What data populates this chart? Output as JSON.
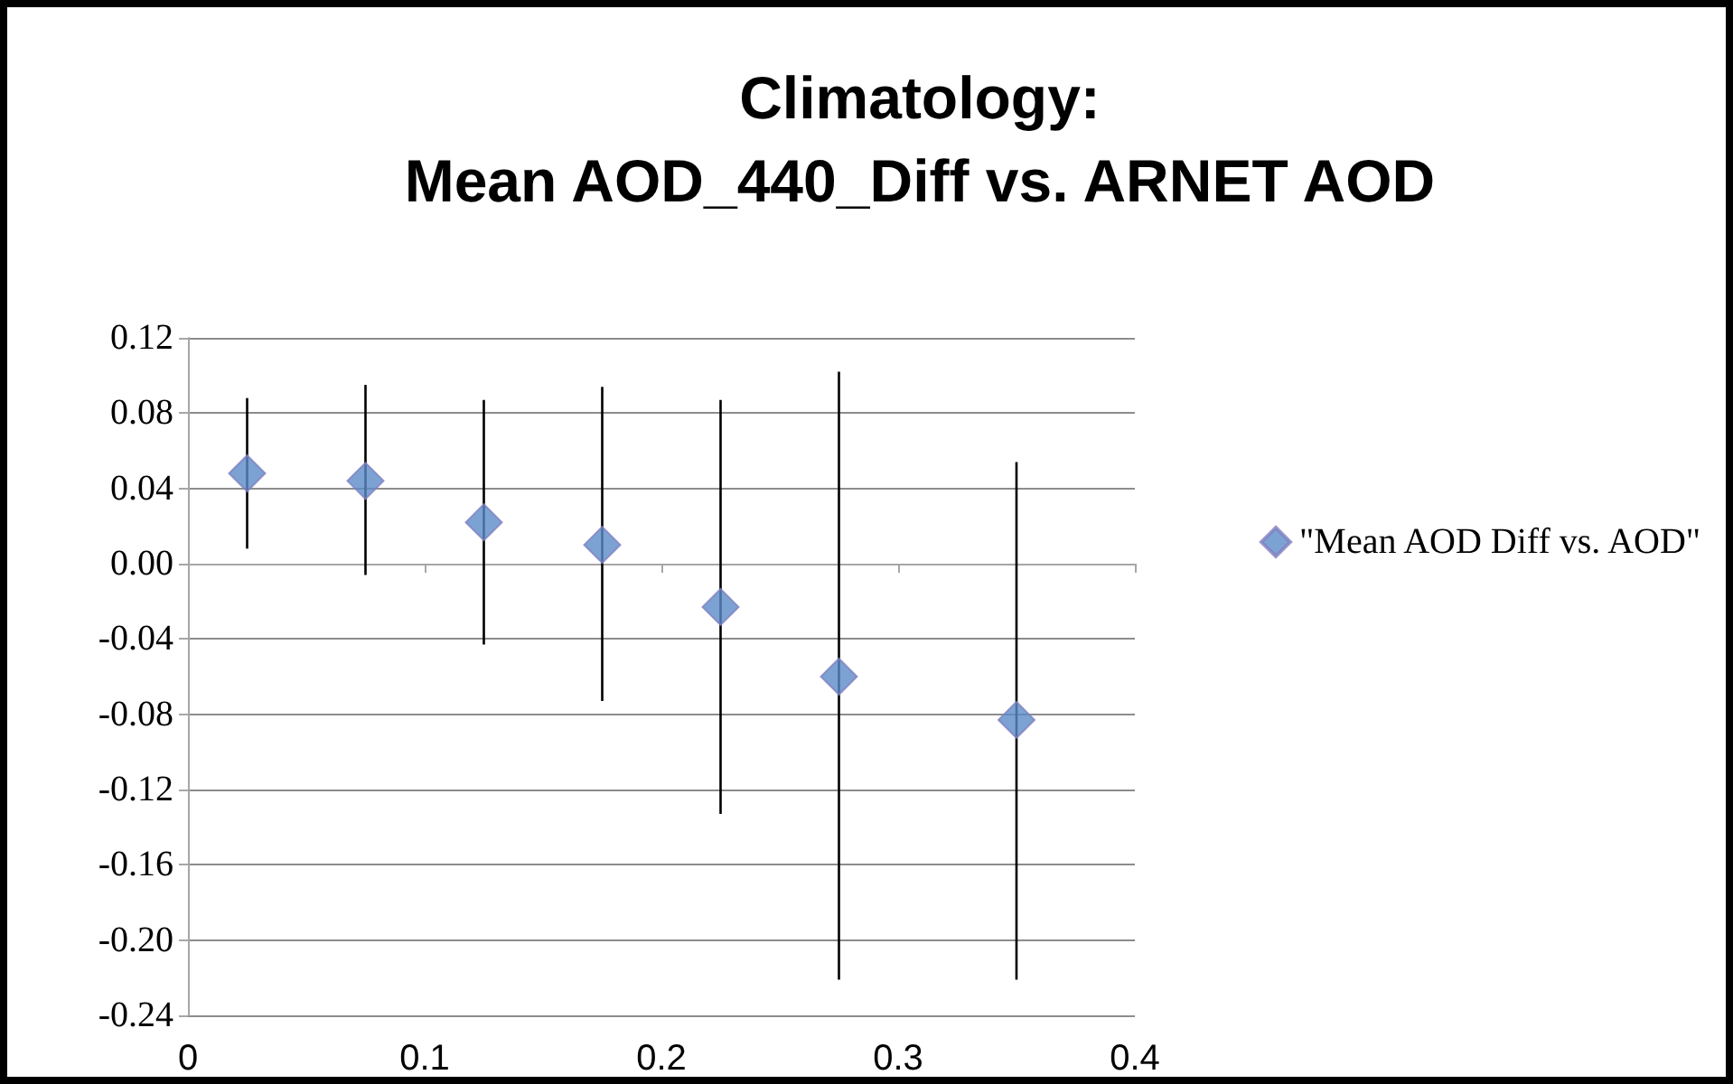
{
  "chart_data": {
    "type": "scatter",
    "title": "Climatology:\nMean AOD_440_Diff vs. ARNET AOD",
    "x": [
      0.025,
      0.075,
      0.125,
      0.175,
      0.225,
      0.275,
      0.35
    ],
    "series": [
      {
        "name": "\"Mean AOD Diff vs. AOD\"",
        "color": "#5b8bc9",
        "values": [
          0.048,
          0.044,
          0.022,
          0.01,
          -0.023,
          -0.06,
          -0.083
        ],
        "errors": [
          [
            0.008,
            0.088
          ],
          [
            -0.006,
            0.095
          ],
          [
            -0.043,
            0.087
          ],
          [
            -0.073,
            0.094
          ],
          [
            -0.133,
            0.087
          ],
          [
            -0.221,
            0.102
          ],
          [
            -0.221,
            0.054
          ]
        ]
      }
    ],
    "xlim": [
      0,
      0.4
    ],
    "xticks": [
      0,
      0.1,
      0.2,
      0.3,
      0.4
    ],
    "ylim": [
      -0.24,
      0.12
    ],
    "yticks": [
      {
        "value": -0.24,
        "label": "-0.24"
      },
      {
        "value": -0.2,
        "label": "-0.20"
      },
      {
        "value": -0.16,
        "label": "-0.16"
      },
      {
        "value": -0.12,
        "label": "-0.12"
      },
      {
        "value": -0.08,
        "label": "-0.08"
      },
      {
        "value": -0.04,
        "label": "-0.04"
      },
      {
        "value": 0,
        "label": "0.00"
      },
      {
        "value": 0.04,
        "label": "0.04"
      },
      {
        "value": 0.08,
        "label": "0.08"
      },
      {
        "value": 0.12,
        "label": "0.12"
      }
    ],
    "grid": "y",
    "legend": "right",
    "marker": "diamond"
  }
}
